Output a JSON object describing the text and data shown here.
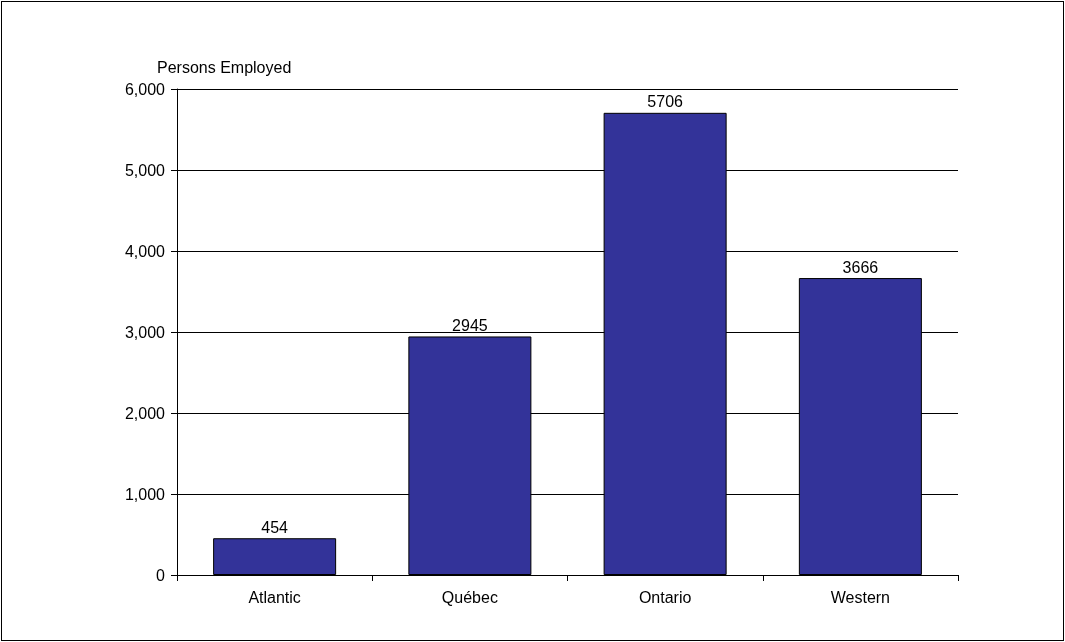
{
  "chart_data": {
    "type": "bar",
    "ylabel": "Persons Employed",
    "categories": [
      "Atlantic",
      "Québec",
      "Ontario",
      "Western"
    ],
    "values": [
      454,
      2945,
      5706,
      3666
    ],
    "color": "#333399",
    "ylim": [
      0,
      6000
    ],
    "yticks": [
      {
        "value": 0,
        "label": "0"
      },
      {
        "value": 1000,
        "label": "1,000"
      },
      {
        "value": 2000,
        "label": "2,000"
      },
      {
        "value": 3000,
        "label": "3,000"
      },
      {
        "value": 4000,
        "label": "4,000"
      },
      {
        "value": 5000,
        "label": "5,000"
      },
      {
        "value": 6000,
        "label": "6,000"
      }
    ],
    "grid": "y",
    "data_labels": true
  }
}
